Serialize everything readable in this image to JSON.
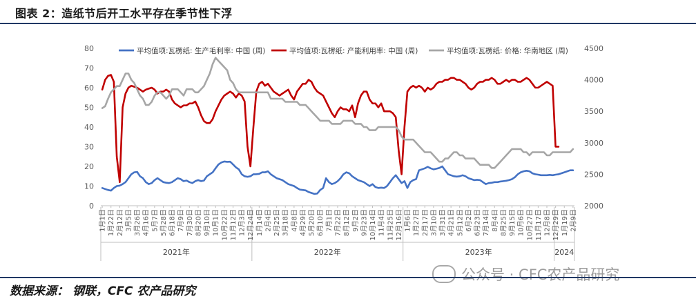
{
  "figure_title": "图表 2：造纸节后开工水平存在季节性下浮",
  "source_text": "数据来源：  钢联，CFC 农产品研究",
  "watermark_text": "公众号 · CFC农产品研究",
  "chart_data": {
    "type": "line",
    "title": "",
    "left_axis": {
      "ylim": [
        0,
        80
      ],
      "ticks": [
        0,
        10,
        20,
        30,
        40,
        50,
        60,
        70,
        80
      ]
    },
    "right_axis": {
      "ylim": [
        2000,
        4500
      ],
      "ticks": [
        2000,
        2500,
        3000,
        3500,
        4000,
        4500
      ]
    },
    "grid": false,
    "legend_position": "top",
    "x_tick_labels": [
      "1月1日",
      "1月22日",
      "2月12日",
      "3月5日",
      "3月26日",
      "4月16日",
      "5月7日",
      "5月28日",
      "6月18日",
      "7月9日",
      "7月30日",
      "8月20日",
      "9月10日",
      "10月1日",
      "10月22日",
      "11月12日",
      "12月3日",
      "12月24日",
      "1月14日",
      "2月4日",
      "2月25日",
      "3月18日",
      "4月8日",
      "4月29日",
      "5月20日",
      "6月10日",
      "7月1日",
      "7月22日",
      "8月12日",
      "9月2日",
      "9月23日",
      "10月14日",
      "11月4日",
      "11月25日",
      "12月16日",
      "1月6日",
      "1月27日",
      "2月17日",
      "3月10日",
      "3月31日",
      "4月21日",
      "5月12日",
      "6月2日",
      "6月23日",
      "7月14日",
      "8月4日",
      "8月25日",
      "9月15日",
      "10月6日",
      "10月27日",
      "11月17日",
      "12月8日",
      "12月29日",
      "1月19日",
      "2月9日"
    ],
    "year_labels": [
      "2021年",
      "2022年",
      "2023年",
      "2024"
    ],
    "year_start_index": [
      0,
      52,
      104,
      156
    ],
    "n_weeks": 163,
    "series": [
      {
        "name": "平均值项:瓦楞纸: 生产毛利率: 中国 (周)",
        "axis": "left",
        "color": "#4472c4",
        "values": [
          9,
          8.5,
          8,
          7.7,
          9,
          10,
          10.2,
          11,
          12,
          14,
          16,
          17,
          17.2,
          15,
          14,
          12,
          11,
          11.5,
          13,
          14,
          13,
          12,
          11.7,
          11.5,
          12,
          13,
          14,
          13.5,
          12.5,
          12.8,
          12,
          11.5,
          12.5,
          13,
          12.5,
          12.8,
          15,
          16,
          17,
          19,
          21,
          22,
          22.5,
          22.3,
          22.4,
          21,
          19.5,
          18.5,
          16,
          15,
          14.7,
          15,
          16,
          16,
          16.2,
          17,
          17,
          17.5,
          16,
          15,
          14,
          13.5,
          13,
          12,
          11,
          10.5,
          10,
          9,
          8.2,
          8,
          7.8,
          7,
          6.5,
          6,
          6.2,
          8,
          9,
          14,
          12,
          11,
          11.5,
          12.5,
          14,
          16,
          17,
          16.5,
          15,
          14,
          13,
          12.5,
          12,
          11,
          10,
          11,
          9.5,
          9,
          9.2,
          9,
          10,
          12,
          14,
          15.5,
          13.5,
          11.5,
          12.5,
          9,
          12,
          13,
          13.5,
          18,
          18.5,
          19,
          19.8,
          19,
          18.5,
          18.8,
          19.2,
          20,
          18,
          16,
          15.5,
          15,
          14.8,
          15,
          15.5,
          15,
          14,
          13.5,
          13,
          13.2,
          13,
          12,
          11,
          11.5,
          11.7,
          12,
          12,
          12.3,
          12.5,
          12.7,
          13,
          13.5,
          14.5,
          16,
          17,
          17.5,
          17.8,
          17.5,
          16.5,
          16,
          15.8,
          15.5,
          15.5,
          15.5,
          15.7,
          15.5,
          15.8,
          16,
          16.5,
          17,
          17.5,
          18,
          18
        ]
      },
      {
        "name": "平均值项:瓦楞纸: 产能利用率: 中国 (周)",
        "axis": "left",
        "color": "#c00000",
        "values": [
          59,
          64,
          66,
          66.5,
          63,
          25,
          12,
          50,
          57,
          60,
          61,
          60.5,
          60,
          59,
          58,
          59,
          59.5,
          60,
          59,
          57,
          58,
          58,
          59,
          58,
          54,
          52,
          51,
          50,
          51,
          51,
          52,
          52,
          53,
          50,
          46,
          43,
          42,
          42,
          44,
          48,
          51,
          54,
          56,
          57,
          58,
          57,
          55,
          57,
          56,
          53,
          30,
          20,
          40,
          58,
          62,
          63,
          61,
          62,
          60,
          58,
          57,
          56,
          57,
          58,
          59,
          56,
          54,
          58,
          60,
          62,
          62,
          64,
          63,
          60,
          58,
          57,
          56,
          53,
          50,
          47,
          45,
          48,
          50,
          49,
          49,
          48,
          51,
          45,
          52,
          56,
          58,
          58,
          54,
          52,
          52,
          50,
          52,
          48,
          48,
          48,
          47,
          45,
          28,
          16,
          40,
          58,
          60,
          61,
          60,
          61,
          60,
          58,
          60,
          59,
          60,
          62,
          63,
          63,
          64,
          64,
          65,
          65,
          64,
          64,
          63,
          62,
          60,
          59,
          60,
          62,
          63,
          63,
          64,
          64,
          65,
          64,
          62,
          62,
          63,
          64,
          63,
          64,
          64,
          63,
          63,
          64,
          65,
          64,
          62,
          60,
          60,
          61,
          62,
          63,
          62,
          61,
          30,
          30
        ]
      },
      {
        "name": "平均值项:瓦楞纸: 价格: 华南地区 (周)",
        "axis": "right",
        "color": "#a6a6a6",
        "values": [
          3550,
          3580,
          3700,
          3800,
          3850,
          3900,
          3900,
          4000,
          4100,
          4100,
          4000,
          3950,
          3850,
          3750,
          3700,
          3600,
          3600,
          3650,
          3750,
          3800,
          3800,
          3750,
          3700,
          3750,
          3850,
          3850,
          3850,
          3800,
          3750,
          3850,
          3850,
          3850,
          3800,
          3800,
          3850,
          3900,
          4000,
          4100,
          4250,
          4350,
          4300,
          4250,
          4200,
          4150,
          4000,
          3950,
          3850,
          3800,
          3800,
          3800,
          3800,
          3800,
          3800,
          3800,
          3800,
          3800,
          3800,
          3800,
          3700,
          3700,
          3700,
          3700,
          3700,
          3650,
          3650,
          3650,
          3650,
          3650,
          3600,
          3600,
          3600,
          3550,
          3500,
          3450,
          3400,
          3350,
          3350,
          3350,
          3350,
          3300,
          3300,
          3300,
          3300,
          3350,
          3350,
          3350,
          3350,
          3300,
          3300,
          3300,
          3250,
          3250,
          3200,
          3200,
          3200,
          3250,
          3250,
          3250,
          3250,
          3250,
          3250,
          3250,
          3200,
          3100,
          3050,
          3050,
          3050,
          3050,
          3000,
          2950,
          2900,
          2850,
          2850,
          2850,
          2800,
          2750,
          2700,
          2700,
          2750,
          2750,
          2800,
          2850,
          2850,
          2800,
          2800,
          2750,
          2750,
          2750,
          2750,
          2700,
          2650,
          2650,
          2650,
          2650,
          2600,
          2600,
          2650,
          2700,
          2750,
          2800,
          2850,
          2900,
          2900,
          2900,
          2900,
          2850,
          2850,
          2800,
          2850,
          2850,
          2850,
          2850,
          2850,
          2800,
          2800,
          2850,
          2850,
          2850,
          2850,
          2850,
          2850,
          2850,
          2900
        ]
      }
    ]
  }
}
